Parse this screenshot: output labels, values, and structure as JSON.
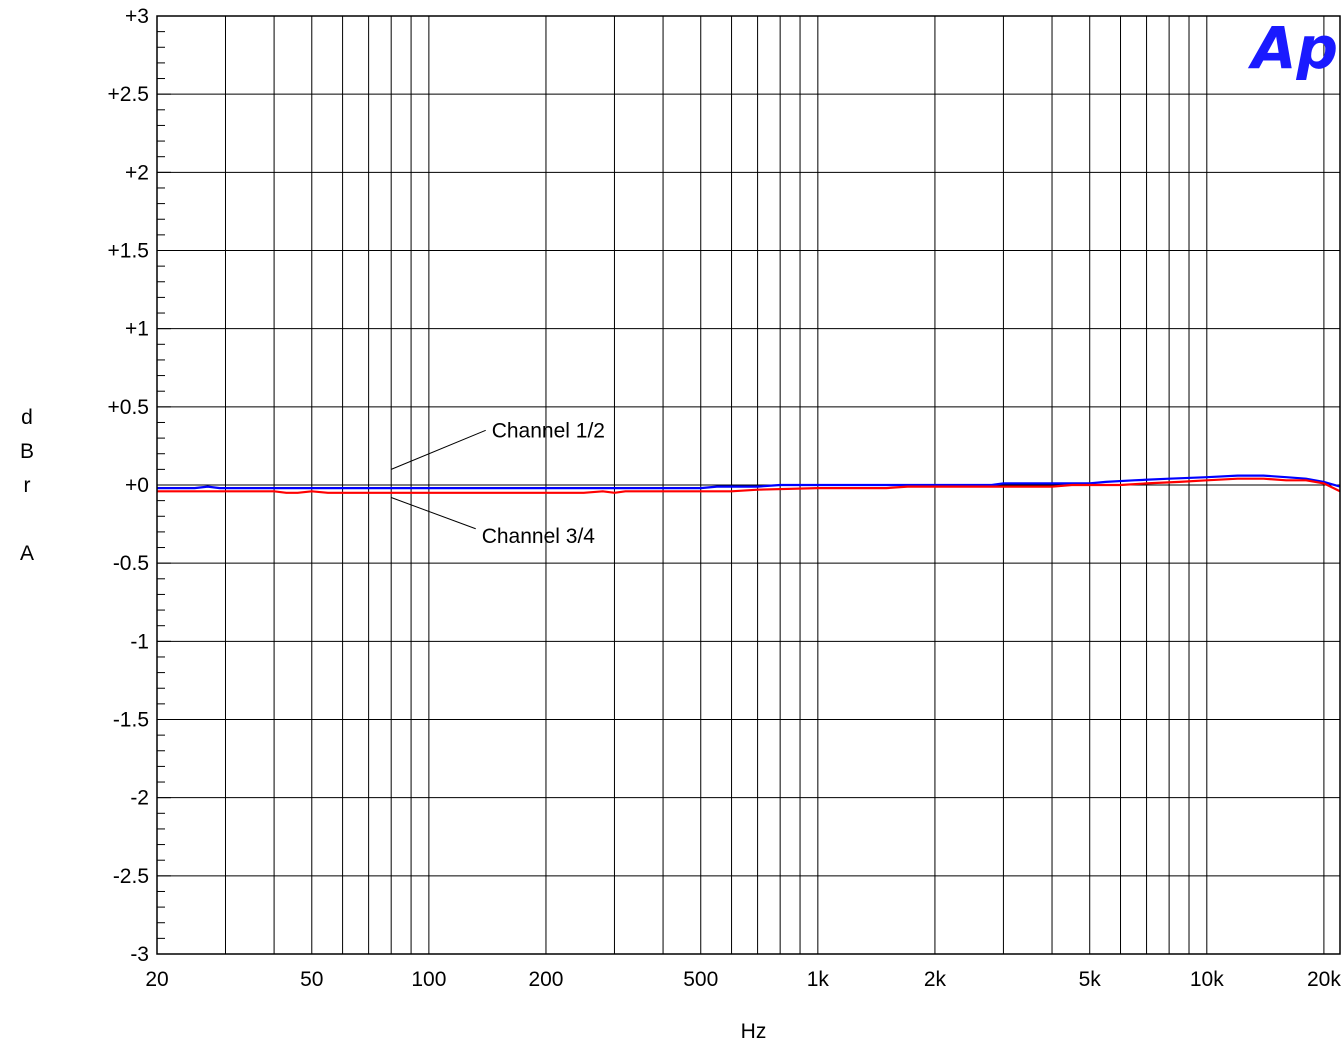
{
  "chart_data": {
    "type": "line",
    "title": "",
    "xlabel": "Hz",
    "ylabel": "dBr A",
    "x_scale": "log",
    "xlim": [
      20,
      22000
    ],
    "ylim": [
      -3,
      3
    ],
    "grid": true,
    "x_ticks": [
      {
        "value": 20,
        "label": "20"
      },
      {
        "value": 50,
        "label": "50"
      },
      {
        "value": 100,
        "label": "100"
      },
      {
        "value": 200,
        "label": "200"
      },
      {
        "value": 500,
        "label": "500"
      },
      {
        "value": 1000,
        "label": "1k"
      },
      {
        "value": 2000,
        "label": "2k"
      },
      {
        "value": 5000,
        "label": "5k"
      },
      {
        "value": 10000,
        "label": "10k"
      },
      {
        "value": 20000,
        "label": "20k"
      }
    ],
    "y_ticks": [
      {
        "value": 3,
        "label": "+3"
      },
      {
        "value": 2.5,
        "label": "+2.5"
      },
      {
        "value": 2,
        "label": "+2"
      },
      {
        "value": 1.5,
        "label": "+1.5"
      },
      {
        "value": 1,
        "label": "+1"
      },
      {
        "value": 0.5,
        "label": "+0.5"
      },
      {
        "value": 0,
        "label": "+0"
      },
      {
        "value": -0.5,
        "label": "-0.5"
      },
      {
        "value": -1,
        "label": "-1"
      },
      {
        "value": -1.5,
        "label": "-1.5"
      },
      {
        "value": -2,
        "label": "-2"
      },
      {
        "value": -2.5,
        "label": "-2.5"
      },
      {
        "value": -3,
        "label": "-3"
      }
    ],
    "series": [
      {
        "name": "Channel 1/2",
        "color": "#0000ff",
        "points": [
          [
            20,
            -0.02
          ],
          [
            25,
            -0.02
          ],
          [
            27,
            -0.01
          ],
          [
            29,
            -0.02
          ],
          [
            40,
            -0.02
          ],
          [
            100,
            -0.02
          ],
          [
            300,
            -0.02
          ],
          [
            500,
            -0.02
          ],
          [
            550,
            -0.01
          ],
          [
            700,
            -0.01
          ],
          [
            800,
            0.0
          ],
          [
            1000,
            0.0
          ],
          [
            2000,
            0.0
          ],
          [
            2800,
            0.0
          ],
          [
            3000,
            0.01
          ],
          [
            4000,
            0.01
          ],
          [
            5000,
            0.01
          ],
          [
            5500,
            0.02
          ],
          [
            6500,
            0.03
          ],
          [
            8000,
            0.04
          ],
          [
            10000,
            0.05
          ],
          [
            12000,
            0.06
          ],
          [
            14000,
            0.06
          ],
          [
            16000,
            0.05
          ],
          [
            18000,
            0.04
          ],
          [
            20000,
            0.02
          ],
          [
            22000,
            -0.01
          ]
        ]
      },
      {
        "name": "Channel 3/4",
        "color": "#ff0000",
        "points": [
          [
            20,
            -0.04
          ],
          [
            40,
            -0.04
          ],
          [
            43,
            -0.05
          ],
          [
            46,
            -0.05
          ],
          [
            50,
            -0.04
          ],
          [
            55,
            -0.05
          ],
          [
            100,
            -0.05
          ],
          [
            250,
            -0.05
          ],
          [
            280,
            -0.04
          ],
          [
            300,
            -0.05
          ],
          [
            320,
            -0.04
          ],
          [
            500,
            -0.04
          ],
          [
            600,
            -0.04
          ],
          [
            700,
            -0.03
          ],
          [
            1000,
            -0.02
          ],
          [
            1500,
            -0.02
          ],
          [
            1700,
            -0.01
          ],
          [
            2500,
            -0.01
          ],
          [
            4000,
            -0.01
          ],
          [
            4500,
            0.0
          ],
          [
            6000,
            0.0
          ],
          [
            7000,
            0.01
          ],
          [
            8500,
            0.02
          ],
          [
            10000,
            0.03
          ],
          [
            12000,
            0.04
          ],
          [
            14000,
            0.04
          ],
          [
            16000,
            0.03
          ],
          [
            18000,
            0.03
          ],
          [
            20000,
            0.01
          ],
          [
            22000,
            -0.04
          ]
        ]
      }
    ],
    "annotations": [
      {
        "text": "Channel 1/2",
        "series": "Channel 1/2"
      },
      {
        "text": "Channel 3/4",
        "series": "Channel 3/4"
      }
    ],
    "logo_text": "Ap"
  }
}
